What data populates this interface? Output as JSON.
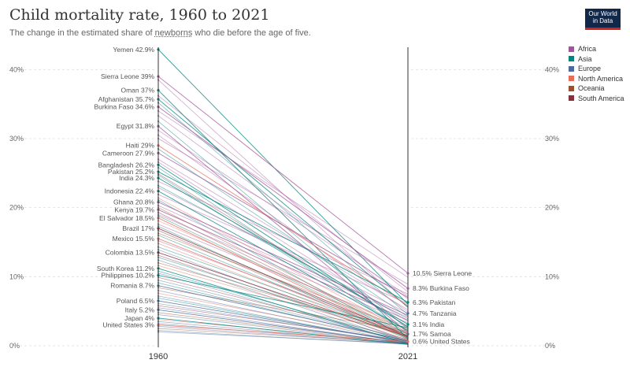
{
  "title": "Child mortality rate, 1960 to 2021",
  "subtitle": {
    "before": "The change in the estimated share of ",
    "link": "newborns",
    "after": " who die before the age of five."
  },
  "logo": {
    "line1": "Our World",
    "line2": "in Data"
  },
  "legend": [
    {
      "name": "Africa",
      "color": "#a2559c"
    },
    {
      "name": "Asia",
      "color": "#00847e"
    },
    {
      "name": "Europe",
      "color": "#4c6a9c"
    },
    {
      "name": "North America",
      "color": "#e56e5a"
    },
    {
      "name": "Oceania",
      "color": "#9a5129"
    },
    {
      "name": "South America",
      "color": "#883039"
    }
  ],
  "chart_data": {
    "type": "slope",
    "x": [
      "1960",
      "2021"
    ],
    "ylim": [
      0,
      43
    ],
    "yticks": [
      "0%",
      "10%",
      "20%",
      "30%",
      "40%"
    ],
    "labeled_left": [
      {
        "name": "Yemen",
        "label": "42.9%",
        "region": "Asia",
        "v1960": 42.9,
        "v2021": 6.0
      },
      {
        "name": "Sierra Leone",
        "label": "39%",
        "region": "Africa",
        "v1960": 39.0,
        "v2021": 10.5
      },
      {
        "name": "Oman",
        "label": "37%",
        "region": "Asia",
        "v1960": 37.0,
        "v2021": 1.0
      },
      {
        "name": "Afghanistan",
        "label": "35.7%",
        "region": "Asia",
        "v1960": 35.7,
        "v2021": 5.6
      },
      {
        "name": "Burkina Faso",
        "label": "34.6%",
        "region": "Africa",
        "v1960": 34.6,
        "v2021": 8.3
      },
      {
        "name": "Egypt",
        "label": "31.8%",
        "region": "Africa",
        "v1960": 31.8,
        "v2021": 1.9
      },
      {
        "name": "Haiti",
        "label": "29%",
        "region": "North America",
        "v1960": 29.0,
        "v2021": 5.8
      },
      {
        "name": "Cameroon",
        "label": "27.9%",
        "region": "Africa",
        "v1960": 27.9,
        "v2021": 7.0
      },
      {
        "name": "Bangladesh",
        "label": "26.2%",
        "region": "Asia",
        "v1960": 26.2,
        "v2021": 2.7
      },
      {
        "name": "Pakistan",
        "label": "25.2%",
        "region": "Asia",
        "v1960": 25.2,
        "v2021": 6.3
      },
      {
        "name": "India",
        "label": "24.3%",
        "region": "Asia",
        "v1960": 24.3,
        "v2021": 3.1
      },
      {
        "name": "Indonesia",
        "label": "22.4%",
        "region": "Asia",
        "v1960": 22.4,
        "v2021": 2.2
      },
      {
        "name": "Ghana",
        "label": "20.8%",
        "region": "Africa",
        "v1960": 20.8,
        "v2021": 4.4
      },
      {
        "name": "Kenya",
        "label": "19.7%",
        "region": "Africa",
        "v1960": 19.7,
        "v2021": 3.7
      },
      {
        "name": "El Salvador",
        "label": "18.5%",
        "region": "North America",
        "v1960": 18.5,
        "v2021": 1.2
      },
      {
        "name": "Brazil",
        "label": "17%",
        "region": "South America",
        "v1960": 17.0,
        "v2021": 1.4
      },
      {
        "name": "Mexico",
        "label": "15.5%",
        "region": "North America",
        "v1960": 15.5,
        "v2021": 1.3
      },
      {
        "name": "Colombia",
        "label": "13.5%",
        "region": "South America",
        "v1960": 13.5,
        "v2021": 1.3
      },
      {
        "name": "South Korea",
        "label": "11.2%",
        "region": "Asia",
        "v1960": 11.2,
        "v2021": 0.3
      },
      {
        "name": "Philippines",
        "label": "10.2%",
        "region": "Asia",
        "v1960": 10.2,
        "v2021": 2.6
      },
      {
        "name": "Romania",
        "label": "8.7%",
        "region": "Europe",
        "v1960": 8.7,
        "v2021": 0.7
      },
      {
        "name": "Poland",
        "label": "6.5%",
        "region": "Europe",
        "v1960": 6.5,
        "v2021": 0.5
      },
      {
        "name": "Italy",
        "label": "5.2%",
        "region": "Europe",
        "v1960": 5.2,
        "v2021": 0.3
      },
      {
        "name": "Japan",
        "label": "4%",
        "region": "Asia",
        "v1960": 4.0,
        "v2021": 0.2
      },
      {
        "name": "United States",
        "label": "3%",
        "region": "North America",
        "v1960": 3.0,
        "v2021": 0.6
      }
    ],
    "labeled_right": [
      {
        "name": "Sierra Leone",
        "label": "10.5%",
        "v2021": 10.5
      },
      {
        "name": "Burkina Faso",
        "label": "8.3%",
        "v2021": 8.3
      },
      {
        "name": "Pakistan",
        "label": "6.3%",
        "v2021": 6.3
      },
      {
        "name": "Tanzania",
        "label": "4.7%",
        "v2021": 4.7
      },
      {
        "name": "India",
        "label": "3.1%",
        "v2021": 3.1
      },
      {
        "name": "Samoa",
        "label": "1.7%",
        "v2021": 1.7
      },
      {
        "name": "United States",
        "label": "0.6%",
        "v2021": 0.6
      }
    ],
    "unlabeled": [
      {
        "region": "Africa",
        "v1960": 38.5,
        "v2021": 5.5
      },
      {
        "region": "Africa",
        "v1960": 36.2,
        "v2021": 7.8
      },
      {
        "region": "Asia",
        "v1960": 35.2,
        "v2021": 4.5
      },
      {
        "region": "Africa",
        "v1960": 34.0,
        "v2021": 9.9
      },
      {
        "region": "Africa",
        "v1960": 33.3,
        "v2021": 6.8
      },
      {
        "region": "Asia",
        "v1960": 32.5,
        "v2021": 2.4
      },
      {
        "region": "Africa",
        "v1960": 31.2,
        "v2021": 7.2
      },
      {
        "region": "Africa",
        "v1960": 30.5,
        "v2021": 4.9
      },
      {
        "region": "Africa",
        "v1960": 30.0,
        "v2021": 8.9
      },
      {
        "region": "Asia",
        "v1960": 28.5,
        "v2021": 4.2
      },
      {
        "region": "Africa",
        "v1960": 27.0,
        "v2021": 5.2
      },
      {
        "region": "Africa",
        "v1960": 26.6,
        "v2021": 3.5
      },
      {
        "region": "Asia",
        "v1960": 25.8,
        "v2021": 1.7
      },
      {
        "region": "South America",
        "v1960": 24.9,
        "v2021": 2.8
      },
      {
        "region": "Asia",
        "v1960": 24.7,
        "v2021": 2.1
      },
      {
        "region": "Africa",
        "v1960": 23.8,
        "v2021": 7.5
      },
      {
        "region": "Asia",
        "v1960": 23.2,
        "v2021": 3.9
      },
      {
        "region": "Africa",
        "v1960": 22.9,
        "v2021": 4.7
      },
      {
        "region": "Africa",
        "v1960": 21.9,
        "v2021": 6.1
      },
      {
        "region": "North America",
        "v1960": 21.4,
        "v2021": 1.9
      },
      {
        "region": "Asia",
        "v1960": 21.1,
        "v2021": 1.0
      },
      {
        "region": "Africa",
        "v1960": 20.3,
        "v2021": 4.1
      },
      {
        "region": "Oceania",
        "v1960": 20.0,
        "v2021": 1.7
      },
      {
        "region": "South America",
        "v1960": 19.3,
        "v2021": 1.6
      },
      {
        "region": "Africa",
        "v1960": 19.0,
        "v2021": 3.3
      },
      {
        "region": "Asia",
        "v1960": 18.8,
        "v2021": 1.4
      },
      {
        "region": "North America",
        "v1960": 18.1,
        "v2021": 2.4
      },
      {
        "region": "Africa",
        "v1960": 17.6,
        "v2021": 2.7
      },
      {
        "region": "Asia",
        "v1960": 17.3,
        "v2021": 0.9
      },
      {
        "region": "South America",
        "v1960": 16.7,
        "v2021": 1.2
      },
      {
        "region": "Oceania",
        "v1960": 16.3,
        "v2021": 2.3
      },
      {
        "region": "Asia",
        "v1960": 16.0,
        "v2021": 1.1
      },
      {
        "region": "Africa",
        "v1960": 15.2,
        "v2021": 1.8
      },
      {
        "region": "North America",
        "v1960": 14.8,
        "v2021": 1.0
      },
      {
        "region": "Asia",
        "v1960": 14.3,
        "v2021": 1.5
      },
      {
        "region": "Europe",
        "v1960": 13.9,
        "v2021": 0.6
      },
      {
        "region": "South America",
        "v1960": 13.1,
        "v2021": 0.8
      },
      {
        "region": "Asia",
        "v1960": 12.8,
        "v2021": 1.3
      },
      {
        "region": "Europe",
        "v1960": 12.4,
        "v2021": 0.5
      },
      {
        "region": "Oceania",
        "v1960": 12.0,
        "v2021": 1.8
      },
      {
        "region": "North America",
        "v1960": 11.6,
        "v2021": 1.4
      },
      {
        "region": "Asia",
        "v1960": 10.8,
        "v2021": 0.7
      },
      {
        "region": "Europe",
        "v1960": 10.5,
        "v2021": 0.4
      },
      {
        "region": "South America",
        "v1960": 9.9,
        "v2021": 0.9
      },
      {
        "region": "Europe",
        "v1960": 9.5,
        "v2021": 0.6
      },
      {
        "region": "Asia",
        "v1960": 9.1,
        "v2021": 0.5
      },
      {
        "region": "Oceania",
        "v1960": 8.4,
        "v2021": 2.1
      },
      {
        "region": "Europe",
        "v1960": 8.0,
        "v2021": 0.4
      },
      {
        "region": "North America",
        "v1960": 7.6,
        "v2021": 0.8
      },
      {
        "region": "Europe",
        "v1960": 7.2,
        "v2021": 0.3
      },
      {
        "region": "Asia",
        "v1960": 6.9,
        "v2021": 0.4
      },
      {
        "region": "Europe",
        "v1960": 6.1,
        "v2021": 0.5
      },
      {
        "region": "South America",
        "v1960": 5.8,
        "v2021": 0.7
      },
      {
        "region": "Europe",
        "v1960": 5.5,
        "v2021": 0.3
      },
      {
        "region": "Oceania",
        "v1960": 4.8,
        "v2021": 0.4
      },
      {
        "region": "Europe",
        "v1960": 4.5,
        "v2021": 0.3
      },
      {
        "region": "North America",
        "v1960": 3.8,
        "v2021": 0.5
      },
      {
        "region": "Europe",
        "v1960": 3.5,
        "v2021": 0.3
      },
      {
        "region": "Europe",
        "v1960": 3.2,
        "v2021": 0.2
      },
      {
        "region": "Europe",
        "v1960": 2.8,
        "v2021": 0.3
      },
      {
        "region": "Oceania",
        "v1960": 2.5,
        "v2021": 0.4
      },
      {
        "region": "Europe",
        "v1960": 2.2,
        "v2021": 0.2
      },
      {
        "region": "Europe",
        "v1960": 2.0,
        "v2021": 0.3
      }
    ]
  }
}
